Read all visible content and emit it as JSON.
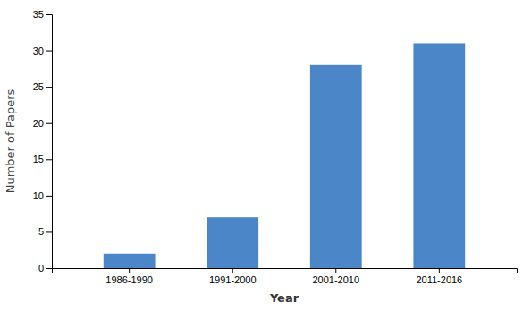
{
  "chart_data": {
    "type": "bar",
    "categories": [
      "1986-1990",
      "1991-2000",
      "2001-2010",
      "2011-2016"
    ],
    "values": [
      2,
      7,
      28,
      31
    ],
    "color": "#4a86c8",
    "xlabel": "Year",
    "ylabel": "Number of Papers",
    "ylim": [
      0,
      35
    ],
    "yticks": [
      0,
      5,
      10,
      15,
      20,
      25,
      30,
      35
    ],
    "grid": false
  }
}
